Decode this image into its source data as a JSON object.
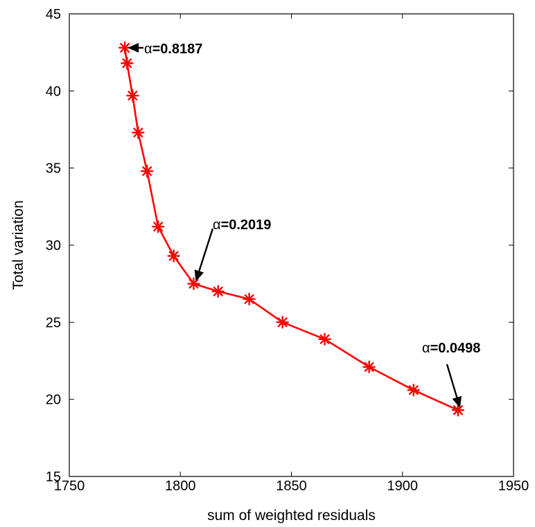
{
  "chart_data": {
    "type": "line",
    "title": "",
    "xlabel": "sum of weighted residuals",
    "ylabel": "Total variation",
    "xlim": [
      1750,
      1950
    ],
    "ylim": [
      15,
      45
    ],
    "xticks": [
      1750,
      1800,
      1850,
      1900,
      1950
    ],
    "yticks": [
      15,
      20,
      25,
      30,
      35,
      40,
      45
    ],
    "grid": false,
    "legend": "none",
    "series": [
      {
        "color": "#ff0000",
        "marker": "asterisk",
        "points": [
          {
            "x": 1775,
            "y": 42.8
          },
          {
            "x": 1776,
            "y": 41.8
          },
          {
            "x": 1778.5,
            "y": 39.7
          },
          {
            "x": 1781,
            "y": 37.3
          },
          {
            "x": 1785,
            "y": 34.8
          },
          {
            "x": 1790,
            "y": 31.2
          },
          {
            "x": 1797,
            "y": 29.3
          },
          {
            "x": 1806,
            "y": 27.5
          },
          {
            "x": 1817,
            "y": 27.0
          },
          {
            "x": 1831,
            "y": 26.5
          },
          {
            "x": 1846,
            "y": 25.0
          },
          {
            "x": 1865,
            "y": 23.9
          },
          {
            "x": 1885,
            "y": 22.1
          },
          {
            "x": 1905,
            "y": 20.6
          },
          {
            "x": 1925,
            "y": 19.3
          }
        ]
      }
    ],
    "annotations": [
      {
        "label_prefix": "α",
        "label_value": "=0.8187",
        "target": {
          "x": 1775,
          "y": 42.8
        }
      },
      {
        "label_prefix": "α",
        "label_value": "=0.2019",
        "target": {
          "x": 1806,
          "y": 27.5
        }
      },
      {
        "label_prefix": "α",
        "label_value": "=0.0498",
        "target": {
          "x": 1925,
          "y": 19.3
        }
      }
    ]
  }
}
